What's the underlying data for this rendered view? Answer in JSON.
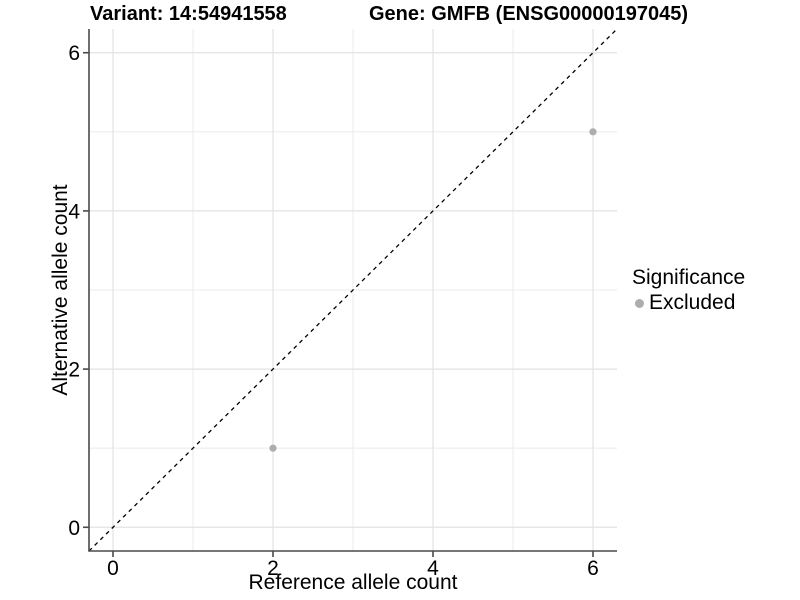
{
  "chart_data": {
    "type": "scatter",
    "titles": {
      "left": "Variant: 14:54941558",
      "right": "Gene: GMFB (ENSG00000197045)"
    },
    "xlabel": "Reference allele count",
    "ylabel": "Alternative allele count",
    "xlim": [
      -0.3,
      6.3
    ],
    "ylim": [
      -0.3,
      6.3
    ],
    "xticks": [
      0,
      2,
      4,
      6
    ],
    "yticks": [
      0,
      2,
      4,
      6
    ],
    "minor_gridlines_x": [
      1,
      3,
      5
    ],
    "minor_gridlines_y": [
      1,
      3,
      5
    ],
    "grid": true,
    "series": [
      {
        "name": "Excluded",
        "color": "#adadad",
        "points": [
          {
            "x": 2,
            "y": 1
          },
          {
            "x": 6,
            "y": 5
          }
        ]
      }
    ],
    "reference_line": {
      "type": "identity",
      "slope": 1,
      "intercept": 0,
      "linestyle": "dashed",
      "color": "#000000"
    },
    "legend": {
      "title": "Significance",
      "position": "right",
      "entries": [
        {
          "label": "Excluded",
          "color": "#adadad"
        }
      ]
    }
  },
  "colors": {
    "background": "#ffffff",
    "grid_major": "#e2e2e2",
    "grid_minor": "#ebebeb",
    "axis_line": "#4a4a4a",
    "text": "#000000"
  }
}
